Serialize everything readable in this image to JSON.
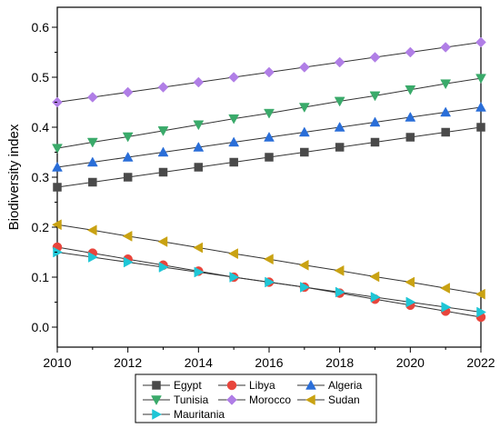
{
  "chart_data": {
    "type": "line",
    "title": "",
    "xlabel": "",
    "ylabel": "Biodiversity index",
    "xlim": [
      2010,
      2022
    ],
    "ylim": [
      -0.04,
      0.64
    ],
    "x_ticks": [
      "2010",
      "2012",
      "2014",
      "2016",
      "2018",
      "2020",
      "2022"
    ],
    "y_ticks": [
      "0.0",
      "0.1",
      "0.2",
      "0.3",
      "0.4",
      "0.5",
      "0.6"
    ],
    "x": [
      2010,
      2011,
      2012,
      2013,
      2014,
      2015,
      2016,
      2017,
      2018,
      2019,
      2020,
      2021,
      2022
    ],
    "legend_position": "bottom",
    "grid": false,
    "series": [
      {
        "name": "Egypt",
        "marker": "square",
        "color": "#4a4a4a",
        "values": [
          0.28,
          0.29,
          0.3,
          0.31,
          0.32,
          0.33,
          0.34,
          0.35,
          0.36,
          0.37,
          0.38,
          0.39,
          0.4
        ]
      },
      {
        "name": "Libya",
        "marker": "circle",
        "color": "#e8453c",
        "values": [
          0.16,
          0.148,
          0.136,
          0.124,
          0.112,
          0.1,
          0.09,
          0.08,
          0.068,
          0.056,
          0.044,
          0.032,
          0.02
        ]
      },
      {
        "name": "Algeria",
        "marker": "triangle-up",
        "color": "#2a6ed8",
        "values": [
          0.32,
          0.33,
          0.34,
          0.35,
          0.36,
          0.37,
          0.38,
          0.39,
          0.4,
          0.41,
          0.42,
          0.43,
          0.44
        ]
      },
      {
        "name": "Tunisia",
        "marker": "triangle-down",
        "color": "#3aaa6a",
        "values": [
          0.358,
          0.37,
          0.381,
          0.393,
          0.405,
          0.417,
          0.428,
          0.44,
          0.452,
          0.463,
          0.475,
          0.487,
          0.498
        ]
      },
      {
        "name": "Morocco",
        "marker": "diamond",
        "color": "#b07ee6",
        "values": [
          0.45,
          0.46,
          0.47,
          0.48,
          0.49,
          0.5,
          0.51,
          0.52,
          0.53,
          0.54,
          0.55,
          0.56,
          0.57
        ]
      },
      {
        "name": "Sudan",
        "marker": "triangle-left",
        "color": "#c9a212",
        "values": [
          0.205,
          0.194,
          0.182,
          0.171,
          0.159,
          0.147,
          0.136,
          0.124,
          0.113,
          0.101,
          0.09,
          0.078,
          0.066
        ]
      },
      {
        "name": "Mauritania",
        "marker": "triangle-right",
        "color": "#1ec6d6",
        "values": [
          0.15,
          0.14,
          0.13,
          0.12,
          0.11,
          0.1,
          0.09,
          0.08,
          0.07,
          0.06,
          0.05,
          0.04,
          0.03
        ]
      }
    ]
  }
}
